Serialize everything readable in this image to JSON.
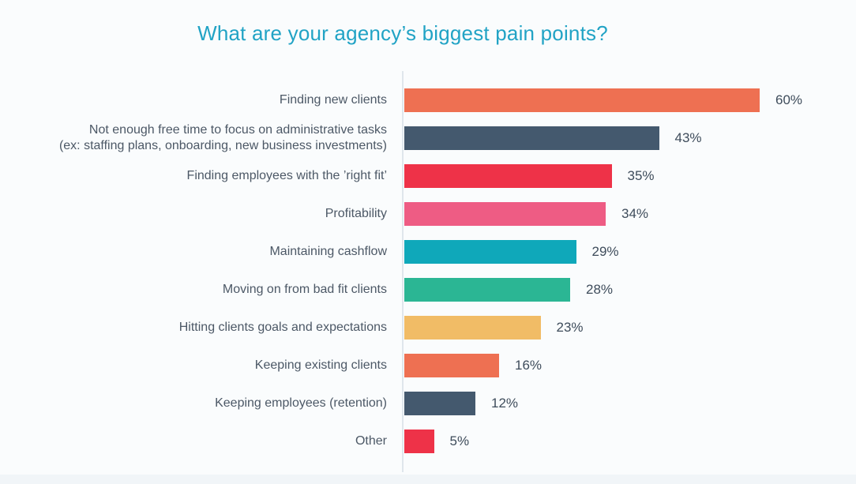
{
  "page": {
    "background": "#FAFCFD",
    "footer_strip_color": "#F1F5F8"
  },
  "chart_data": {
    "type": "bar",
    "orientation": "horizontal",
    "title": "What are your agency’s biggest pain points?",
    "title_color": "#21A3C5",
    "categories": [
      "Finding new clients",
      "Not enough free time to focus on administrative tasks\n(ex: staffing plans, onboarding, new business investments)",
      "Finding employees with the ’right fit’",
      "Profitability",
      "Maintaining cashflow",
      "Moving on from bad fit clients",
      "Hitting clients goals and expectations",
      "Keeping existing clients",
      "Keeping employees (retention)",
      "Other"
    ],
    "values": [
      60,
      43,
      35,
      34,
      29,
      28,
      23,
      16,
      12,
      5
    ],
    "value_labels": [
      "60%",
      "43%",
      "35%",
      "34%",
      "29%",
      "28%",
      "23%",
      "16%",
      "12%",
      "5%"
    ],
    "bar_colors": [
      "#EE7052",
      "#44596E",
      "#EE3248",
      "#EE5C84",
      "#0FA8BA",
      "#2BB694",
      "#F1BC66",
      "#EE7052",
      "#44596E",
      "#EE3248"
    ],
    "xlim": [
      0,
      60
    ],
    "axis_color": "#DFE6EC",
    "label_color": "#4C5866",
    "value_color": "#3E4C5B",
    "xlabel": "",
    "ylabel": "",
    "grid": false,
    "legend": false
  }
}
